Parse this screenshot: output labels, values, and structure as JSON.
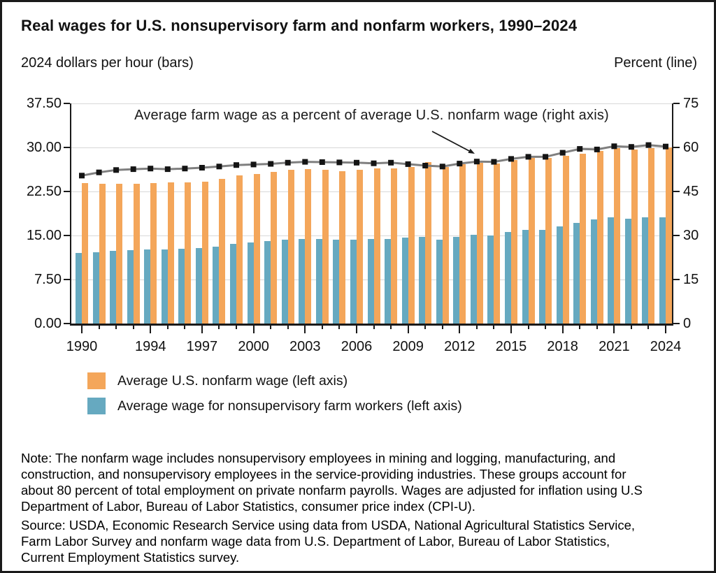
{
  "page": {
    "title": "Real wages for U.S. nonsupervisory farm and nonfarm workers, 1990–2024",
    "left_axis_header": "2024 dollars per hour (bars)",
    "right_axis_header": "Percent (line)",
    "note": "Note: The nonfarm wage includes nonsupervisory employees in mining and logging, manufacturing, and construction, and nonsupervisory employees in the service-providing industries. These groups account for about 80 percent of total employment on private nonfarm payrolls. Wages are adjusted for inflation using U.S Department of Labor, Bureau of Labor Statistics, consumer price index (CPI-U).",
    "source": "Source: USDA, Economic Research Service using data from USDA, National Agricultural Statistics Service, Farm Labor Survey and nonfarm wage data from U.S. Department of Labor, Bureau of Labor Statistics, Current Employment Statistics survey."
  },
  "legend": {
    "items": [
      {
        "label": "Average U.S. nonfarm wage (left axis)",
        "color": "#F4A65A"
      },
      {
        "label": "Average wage for nonsupervisory farm workers (left axis)",
        "color": "#66A9C0"
      }
    ]
  },
  "chart_data": {
    "type": "combo bar+line (dual axis)",
    "title": "Real wages for U.S. nonsupervisory farm and nonfarm workers, 1990–2024",
    "x": [
      1990,
      1991,
      1992,
      1993,
      1994,
      1995,
      1996,
      1997,
      1998,
      1999,
      2000,
      2001,
      2002,
      2003,
      2004,
      2005,
      2006,
      2007,
      2008,
      2009,
      2010,
      2011,
      2012,
      2013,
      2014,
      2015,
      2016,
      2017,
      2018,
      2019,
      2020,
      2021,
      2022,
      2023,
      2024
    ],
    "series": [
      {
        "name": "Average U.S. nonfarm wage (left axis)",
        "type": "bar",
        "axis": "left",
        "color": "#F4A65A",
        "values": [
          23.9,
          23.8,
          23.8,
          23.8,
          23.9,
          24.0,
          24.1,
          24.2,
          24.6,
          25.2,
          25.5,
          25.8,
          26.2,
          26.3,
          26.2,
          26.0,
          26.2,
          26.4,
          26.4,
          26.7,
          27.5,
          26.7,
          27.2,
          27.4,
          27.3,
          27.9,
          28.2,
          28.2,
          28.6,
          28.9,
          29.4,
          29.9,
          29.6,
          29.9,
          30.0
        ]
      },
      {
        "name": "Average wage for nonsupervisory farm workers (left axis)",
        "type": "bar",
        "axis": "left",
        "color": "#66A9C0",
        "values": [
          12.0,
          12.2,
          12.4,
          12.5,
          12.6,
          12.6,
          12.7,
          12.9,
          13.1,
          13.6,
          13.8,
          14.0,
          14.3,
          14.4,
          14.4,
          14.3,
          14.3,
          14.4,
          14.4,
          14.7,
          14.8,
          14.3,
          14.8,
          15.1,
          15.0,
          15.6,
          16.0,
          16.0,
          16.6,
          17.2,
          17.7,
          18.1,
          17.8,
          18.1,
          18.1
        ]
      },
      {
        "name": "Average farm wage as a percent of average U.S. nonfarm wage (right axis)",
        "type": "line",
        "axis": "right",
        "color": "#7F7F7F",
        "marker": "square",
        "marker_color": "#141414",
        "values": [
          50.4,
          51.5,
          52.3,
          52.6,
          52.8,
          52.6,
          52.8,
          53.1,
          53.5,
          54.0,
          54.2,
          54.4,
          54.8,
          55.1,
          55.0,
          54.9,
          54.8,
          54.6,
          54.8,
          54.3,
          53.8,
          53.5,
          54.5,
          55.2,
          55.1,
          56.1,
          56.8,
          56.8,
          58.2,
          59.5,
          59.3,
          60.4,
          60.2,
          60.8,
          60.3
        ]
      }
    ],
    "left_axis": {
      "title": "2024 dollars per hour (bars)",
      "range": [
        0,
        37.5
      ],
      "tick_labels": [
        "0.00",
        "7.50",
        "15.00",
        "22.50",
        "30.00",
        "37.50"
      ]
    },
    "right_axis": {
      "title": "Percent (line)",
      "range": [
        0,
        75
      ],
      "tick_labels": [
        "0",
        "15",
        "30",
        "45",
        "60",
        "75"
      ]
    },
    "x_axis": {
      "labeled_years": [
        1990,
        1994,
        1997,
        2000,
        2003,
        2006,
        2009,
        2012,
        2015,
        2018,
        2021,
        2024
      ]
    },
    "annotation": {
      "text": "Average farm wage as a percent of average U.S. nonfarm wage (right axis)",
      "points_to_year": 2013
    },
    "grid": true,
    "legend_position": "bottom-left"
  }
}
